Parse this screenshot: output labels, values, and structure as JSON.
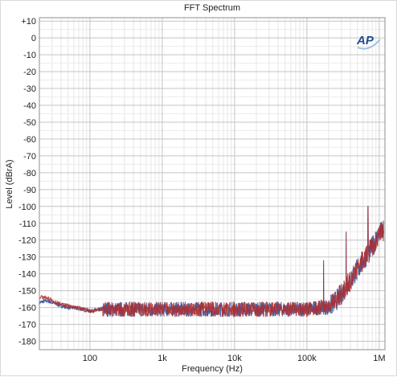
{
  "chart_data": {
    "type": "line",
    "title": "FFT Spectrum",
    "xlabel": "Frequency (Hz)",
    "ylabel": "Level (dBrA)",
    "x_scale": "log",
    "xlim": [
      20,
      1200000
    ],
    "ylim": [
      -185,
      12
    ],
    "x_ticks": [
      {
        "value": 100,
        "label": "100"
      },
      {
        "value": 1000,
        "label": "1k"
      },
      {
        "value": 10000,
        "label": "10k"
      },
      {
        "value": 100000,
        "label": "100k"
      },
      {
        "value": 1000000,
        "label": "1M"
      }
    ],
    "y_ticks": [
      {
        "value": 10,
        "label": "+10"
      },
      {
        "value": 0,
        "label": "0"
      },
      {
        "value": -10,
        "label": "-10"
      },
      {
        "value": -20,
        "label": "-20"
      },
      {
        "value": -30,
        "label": "-30"
      },
      {
        "value": -40,
        "label": "-40"
      },
      {
        "value": -50,
        "label": "-50"
      },
      {
        "value": -60,
        "label": "-60"
      },
      {
        "value": -70,
        "label": "-70"
      },
      {
        "value": -80,
        "label": "-80"
      },
      {
        "value": -90,
        "label": "-90"
      },
      {
        "value": -100,
        "label": "-100"
      },
      {
        "value": -110,
        "label": "-110"
      },
      {
        "value": -120,
        "label": "-120"
      },
      {
        "value": -130,
        "label": "-130"
      },
      {
        "value": -140,
        "label": "-140"
      },
      {
        "value": -150,
        "label": "-150"
      },
      {
        "value": -160,
        "label": "-160"
      },
      {
        "value": -170,
        "label": "-170"
      },
      {
        "value": -180,
        "label": "-180"
      }
    ],
    "grid": true,
    "legend": "none",
    "logo": "AP",
    "series": [
      {
        "color": "#3a5a9e",
        "x": [
          20,
          25,
          30,
          40,
          50,
          60,
          70,
          80,
          100,
          150,
          200,
          300,
          500,
          700,
          1000,
          2000,
          5000,
          10000,
          20000,
          50000,
          100000,
          150000,
          200000,
          250000,
          300000,
          400000,
          500000,
          600000,
          700000,
          800000,
          900000,
          1000000,
          1200000
        ],
        "y": [
          -157,
          -156,
          -157,
          -159,
          -160,
          -160,
          -161,
          -161,
          -162,
          -161,
          -161,
          -161,
          -161,
          -161,
          -161,
          -161,
          -161,
          -161,
          -161,
          -161,
          -161,
          -160,
          -160,
          -156,
          -152,
          -144,
          -137,
          -132,
          -128,
          -124,
          -120,
          -116,
          -114
        ]
      },
      {
        "color": "#b22b2b",
        "x": [
          20,
          25,
          30,
          40,
          50,
          60,
          70,
          80,
          100,
          150,
          200,
          300,
          500,
          700,
          1000,
          2000,
          5000,
          10000,
          20000,
          50000,
          100000,
          150000,
          200000,
          250000,
          300000,
          400000,
          500000,
          600000,
          700000,
          800000,
          900000,
          1000000,
          1200000
        ],
        "y": [
          -154,
          -154,
          -156,
          -158,
          -159,
          -160,
          -160,
          -161,
          -162,
          -161,
          -161,
          -161,
          -161,
          -161,
          -161,
          -161,
          -161,
          -161,
          -161,
          -161,
          -161,
          -160,
          -160,
          -156,
          -152,
          -144,
          -137,
          -132,
          -128,
          -124,
          -120,
          -116,
          -114
        ]
      }
    ],
    "spurs": [
      {
        "x": 170000,
        "y": -132
      },
      {
        "x": 350000,
        "y": -115
      },
      {
        "x": 700000,
        "y": -100
      }
    ]
  }
}
